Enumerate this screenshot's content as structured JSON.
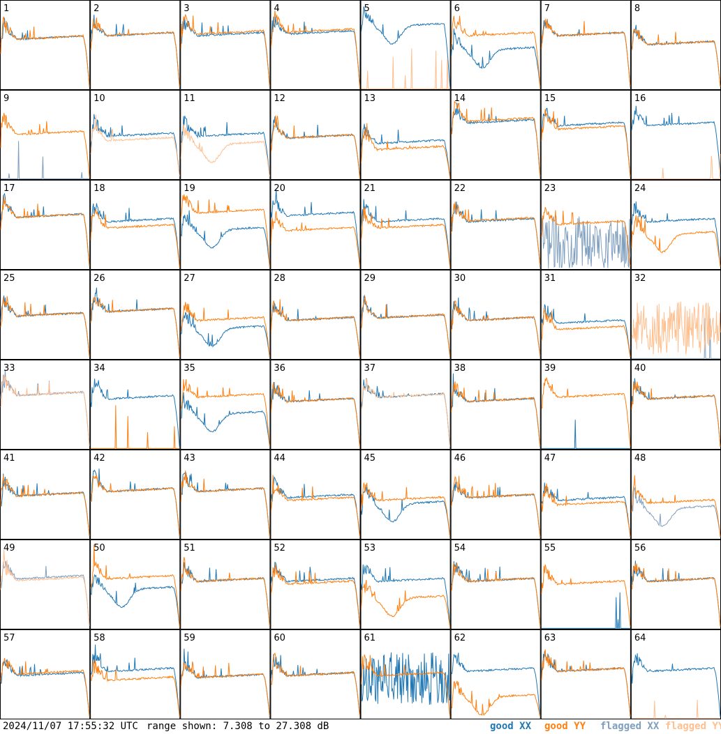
{
  "footer": {
    "timestamp": "2024/11/07 17:55:32 UTC",
    "range_text": "range shown: 7.308 to 27.308 dB"
  },
  "legend": {
    "good_xx": "good XX",
    "good_yy": "good YY",
    "flagged_xx": "flagged XX",
    "flagged_yy": "flagged YY"
  },
  "colors": {
    "good_xx": "#1f77b4",
    "good_yy": "#ff7f0e",
    "flagged_xx": "#7f9fbf",
    "flagged_yy": "#ffbf8f"
  },
  "chart_data": {
    "type": "line",
    "grid_layout": {
      "rows": 8,
      "cols": 8
    },
    "y_range_db": [
      7.308,
      27.308
    ],
    "series_names": [
      "good XX",
      "good YY",
      "flagged XX",
      "flagged YY"
    ],
    "panels": [
      {
        "id": "1",
        "xx": "good",
        "yy": "good",
        "xx_level": 0.58,
        "yy_level": 0.58,
        "xx_shape": "normal",
        "yy_shape": "normal"
      },
      {
        "id": "2",
        "xx": "good",
        "yy": "good",
        "xx_level": 0.62,
        "yy_level": 0.62,
        "xx_shape": "normal",
        "yy_shape": "normal"
      },
      {
        "id": "3",
        "xx": "good",
        "yy": "good",
        "xx_level": 0.62,
        "yy_level": 0.64,
        "xx_shape": "normal",
        "yy_shape": "normal"
      },
      {
        "id": "4",
        "xx": "good",
        "yy": "good",
        "xx_level": 0.64,
        "yy_level": 0.66,
        "xx_shape": "normal",
        "yy_shape": "normal"
      },
      {
        "id": "5",
        "xx": "good",
        "yy": "flagged",
        "xx_level": 0.72,
        "yy_level": 0.02,
        "xx_shape": "dip",
        "yy_shape": "dead"
      },
      {
        "id": "6",
        "xx": "good",
        "yy": "good",
        "xx_level": 0.45,
        "yy_level": 0.62,
        "xx_shape": "dip",
        "yy_shape": "normal"
      },
      {
        "id": "7",
        "xx": "good",
        "yy": "good",
        "xx_level": 0.62,
        "yy_level": 0.62,
        "xx_shape": "normal",
        "yy_shape": "normal"
      },
      {
        "id": "8",
        "xx": "good",
        "yy": "good",
        "xx_level": 0.52,
        "yy_level": 0.52,
        "xx_shape": "normal",
        "yy_shape": "normal"
      },
      {
        "id": "9",
        "xx": "flagged",
        "yy": "good",
        "xx_level": 0.05,
        "yy_level": 0.52,
        "xx_shape": "dead",
        "yy_shape": "normal"
      },
      {
        "id": "10",
        "xx": "good",
        "yy": "flagged",
        "xx_level": 0.5,
        "yy_level": 0.45,
        "xx_shape": "normal",
        "yy_shape": "normal"
      },
      {
        "id": "11",
        "xx": "good",
        "yy": "flagged",
        "xx_level": 0.5,
        "yy_level": 0.4,
        "xx_shape": "normal",
        "yy_shape": "dip"
      },
      {
        "id": "12",
        "xx": "good",
        "yy": "good",
        "xx_level": 0.48,
        "yy_level": 0.48,
        "xx_shape": "normal",
        "yy_shape": "normal"
      },
      {
        "id": "13",
        "xx": "good",
        "yy": "good",
        "xx_level": 0.42,
        "yy_level": 0.35,
        "xx_shape": "normal",
        "yy_shape": "normal"
      },
      {
        "id": "14",
        "xx": "good",
        "yy": "good",
        "xx_level": 0.65,
        "yy_level": 0.67,
        "xx_shape": "normal",
        "yy_shape": "normal"
      },
      {
        "id": "15",
        "xx": "good",
        "yy": "good",
        "xx_level": 0.62,
        "yy_level": 0.58,
        "xx_shape": "normal",
        "yy_shape": "normal"
      },
      {
        "id": "16",
        "xx": "good",
        "yy": "flagged",
        "xx_level": 0.62,
        "yy_level": 0.02,
        "xx_shape": "normal",
        "yy_shape": "dead"
      },
      {
        "id": "17",
        "xx": "good",
        "yy": "good",
        "xx_level": 0.6,
        "yy_level": 0.6,
        "xx_shape": "normal",
        "yy_shape": "normal"
      },
      {
        "id": "18",
        "xx": "good",
        "yy": "good",
        "xx_level": 0.55,
        "yy_level": 0.48,
        "xx_shape": "normal",
        "yy_shape": "normal"
      },
      {
        "id": "19",
        "xx": "good",
        "yy": "good",
        "xx_level": 0.45,
        "yy_level": 0.65,
        "xx_shape": "dip",
        "yy_shape": "normal"
      },
      {
        "id": "20",
        "xx": "good",
        "yy": "good",
        "xx_level": 0.62,
        "yy_level": 0.45,
        "xx_shape": "normal",
        "yy_shape": "normal"
      },
      {
        "id": "21",
        "xx": "good",
        "yy": "good",
        "xx_level": 0.55,
        "yy_level": 0.48,
        "xx_shape": "normal",
        "yy_shape": "normal"
      },
      {
        "id": "22",
        "xx": "good",
        "yy": "good",
        "xx_level": 0.55,
        "yy_level": 0.56,
        "xx_shape": "normal",
        "yy_shape": "normal"
      },
      {
        "id": "23",
        "xx": "flagged",
        "yy": "good",
        "xx_level": 0.3,
        "yy_level": 0.52,
        "xx_shape": "noisy",
        "yy_shape": "normal"
      },
      {
        "id": "24",
        "xx": "good",
        "yy": "good",
        "xx_level": 0.55,
        "yy_level": 0.4,
        "xx_shape": "normal",
        "yy_shape": "dip"
      },
      {
        "id": "25",
        "xx": "good",
        "yy": "good",
        "xx_level": 0.5,
        "yy_level": 0.5,
        "xx_shape": "normal",
        "yy_shape": "normal"
      },
      {
        "id": "26",
        "xx": "good",
        "yy": "good",
        "xx_level": 0.55,
        "yy_level": 0.55,
        "xx_shape": "normal",
        "yy_shape": "normal"
      },
      {
        "id": "27",
        "xx": "good",
        "yy": "good",
        "xx_level": 0.35,
        "yy_level": 0.45,
        "xx_shape": "dip",
        "yy_shape": "normal"
      },
      {
        "id": "28",
        "xx": "good",
        "yy": "good",
        "xx_level": 0.45,
        "yy_level": 0.45,
        "xx_shape": "normal",
        "yy_shape": "normal"
      },
      {
        "id": "29",
        "xx": "good",
        "yy": "good",
        "xx_level": 0.48,
        "yy_level": 0.48,
        "xx_shape": "normal",
        "yy_shape": "normal"
      },
      {
        "id": "30",
        "xx": "good",
        "yy": "good",
        "xx_level": 0.45,
        "yy_level": 0.45,
        "xx_shape": "normal",
        "yy_shape": "normal"
      },
      {
        "id": "31",
        "xx": "good",
        "yy": "good",
        "xx_level": 0.42,
        "yy_level": 0.35,
        "xx_shape": "normal",
        "yy_shape": "normal"
      },
      {
        "id": "32",
        "xx": "flagged",
        "yy": "flagged",
        "xx_level": 0.02,
        "yy_level": 0.35,
        "xx_shape": "dead",
        "yy_shape": "noisy"
      },
      {
        "id": "33",
        "xx": "flagged",
        "yy": "flagged",
        "xx_level": 0.62,
        "yy_level": 0.62,
        "xx_shape": "normal",
        "yy_shape": "normal"
      },
      {
        "id": "34",
        "xx": "good",
        "yy": "good",
        "xx_level": 0.58,
        "yy_level": 0.02,
        "xx_shape": "normal",
        "yy_shape": "dead"
      },
      {
        "id": "35",
        "xx": "good",
        "yy": "good",
        "xx_level": 0.4,
        "yy_level": 0.6,
        "xx_shape": "dip",
        "yy_shape": "normal"
      },
      {
        "id": "36",
        "xx": "good",
        "yy": "good",
        "xx_level": 0.55,
        "yy_level": 0.55,
        "xx_shape": "normal",
        "yy_shape": "normal"
      },
      {
        "id": "37",
        "xx": "good",
        "yy": "flagged",
        "xx_level": 0.6,
        "yy_level": 0.6,
        "xx_shape": "normal",
        "yy_shape": "normal"
      },
      {
        "id": "38",
        "xx": "good",
        "yy": "good",
        "xx_level": 0.55,
        "yy_level": 0.55,
        "xx_shape": "normal",
        "yy_shape": "normal"
      },
      {
        "id": "39",
        "xx": "good",
        "yy": "good",
        "xx_level": 0.02,
        "yy_level": 0.6,
        "xx_shape": "dead",
        "yy_shape": "normal"
      },
      {
        "id": "40",
        "xx": "good",
        "yy": "good",
        "xx_level": 0.58,
        "yy_level": 0.58,
        "xx_shape": "normal",
        "yy_shape": "normal"
      },
      {
        "id": "41",
        "xx": "good",
        "yy": "good",
        "xx_level": 0.5,
        "yy_level": 0.5,
        "xx_shape": "normal",
        "yy_shape": "normal"
      },
      {
        "id": "42",
        "xx": "good",
        "yy": "good",
        "xx_level": 0.55,
        "yy_level": 0.55,
        "xx_shape": "normal",
        "yy_shape": "normal"
      },
      {
        "id": "43",
        "xx": "good",
        "yy": "good",
        "xx_level": 0.55,
        "yy_level": 0.55,
        "xx_shape": "normal",
        "yy_shape": "normal"
      },
      {
        "id": "44",
        "xx": "good",
        "yy": "good",
        "xx_level": 0.48,
        "yy_level": 0.45,
        "xx_shape": "normal",
        "yy_shape": "normal"
      },
      {
        "id": "45",
        "xx": "good",
        "yy": "good",
        "xx_level": 0.4,
        "yy_level": 0.45,
        "xx_shape": "dip",
        "yy_shape": "normal"
      },
      {
        "id": "46",
        "xx": "good",
        "yy": "good",
        "xx_level": 0.48,
        "yy_level": 0.48,
        "xx_shape": "normal",
        "yy_shape": "normal"
      },
      {
        "id": "47",
        "xx": "good",
        "yy": "good",
        "xx_level": 0.45,
        "yy_level": 0.4,
        "xx_shape": "normal",
        "yy_shape": "normal"
      },
      {
        "id": "48",
        "xx": "flagged",
        "yy": "good",
        "xx_level": 0.35,
        "yy_level": 0.42,
        "xx_shape": "dip",
        "yy_shape": "normal"
      },
      {
        "id": "49",
        "xx": "flagged",
        "yy": "flagged",
        "xx_level": 0.58,
        "yy_level": 0.56,
        "xx_shape": "normal",
        "yy_shape": "normal"
      },
      {
        "id": "50",
        "xx": "good",
        "yy": "good",
        "xx_level": 0.45,
        "yy_level": 0.58,
        "xx_shape": "dip",
        "yy_shape": "normal"
      },
      {
        "id": "51",
        "xx": "good",
        "yy": "good",
        "xx_level": 0.55,
        "yy_level": 0.55,
        "xx_shape": "normal",
        "yy_shape": "normal"
      },
      {
        "id": "52",
        "xx": "good",
        "yy": "good",
        "xx_level": 0.55,
        "yy_level": 0.52,
        "xx_shape": "normal",
        "yy_shape": "normal"
      },
      {
        "id": "53",
        "xx": "good",
        "yy": "good",
        "xx_level": 0.55,
        "yy_level": 0.35,
        "xx_shape": "normal",
        "yy_shape": "dip"
      },
      {
        "id": "54",
        "xx": "good",
        "yy": "good",
        "xx_level": 0.55,
        "yy_level": 0.55,
        "xx_shape": "normal",
        "yy_shape": "normal"
      },
      {
        "id": "55",
        "xx": "good",
        "yy": "good",
        "xx_level": 0.02,
        "yy_level": 0.52,
        "xx_shape": "dead",
        "yy_shape": "normal"
      },
      {
        "id": "56",
        "xx": "good",
        "yy": "good",
        "xx_level": 0.55,
        "yy_level": 0.55,
        "xx_shape": "normal",
        "yy_shape": "normal"
      },
      {
        "id": "57",
        "xx": "good",
        "yy": "good",
        "xx_level": 0.5,
        "yy_level": 0.52,
        "xx_shape": "normal",
        "yy_shape": "normal"
      },
      {
        "id": "58",
        "xx": "good",
        "yy": "good",
        "xx_level": 0.55,
        "yy_level": 0.45,
        "xx_shape": "normal",
        "yy_shape": "normal"
      },
      {
        "id": "59",
        "xx": "good",
        "yy": "good",
        "xx_level": 0.48,
        "yy_level": 0.48,
        "xx_shape": "normal",
        "yy_shape": "normal"
      },
      {
        "id": "60",
        "xx": "good",
        "yy": "good",
        "xx_level": 0.5,
        "yy_level": 0.5,
        "xx_shape": "normal",
        "yy_shape": "normal"
      },
      {
        "id": "61",
        "xx": "good",
        "yy": "good",
        "xx_level": 0.45,
        "yy_level": 0.5,
        "xx_shape": "noisy",
        "yy_shape": "normal"
      },
      {
        "id": "62",
        "xx": "good",
        "yy": "good",
        "xx_level": 0.55,
        "yy_level": 0.25,
        "xx_shape": "normal",
        "yy_shape": "dip"
      },
      {
        "id": "63",
        "xx": "good",
        "yy": "good",
        "xx_level": 0.55,
        "yy_level": 0.55,
        "xx_shape": "normal",
        "yy_shape": "normal"
      },
      {
        "id": "64",
        "xx": "good",
        "yy": "flagged",
        "xx_level": 0.55,
        "yy_level": 0.02,
        "xx_shape": "normal",
        "yy_shape": "dead"
      }
    ]
  }
}
